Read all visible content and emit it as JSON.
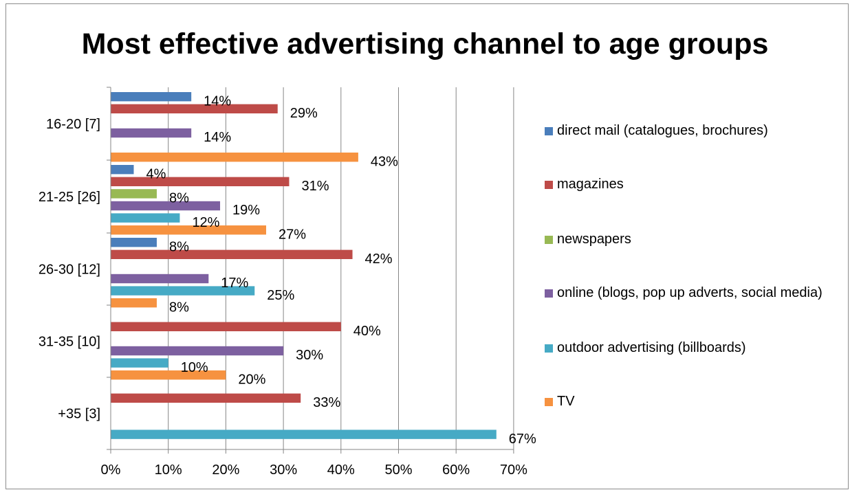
{
  "chart_data": {
    "type": "bar",
    "orientation": "horizontal",
    "title": "Most effective advertising channel to age groups",
    "xlabel": "",
    "ylabel": "",
    "xlim": [
      0,
      70
    ],
    "x_ticks": [
      "0%",
      "10%",
      "20%",
      "30%",
      "40%",
      "50%",
      "60%",
      "70%"
    ],
    "grid": "vertical major gridlines",
    "legend_position": "right",
    "categories": [
      "16-20 [7]",
      "21-25 [26]",
      "26-30 [12]",
      "31-35 [10]",
      "+35 [3]"
    ],
    "series": [
      {
        "name": "direct mail (catalogues, brochures)",
        "color": "#4a7ebb",
        "values": [
          14,
          4,
          8,
          null,
          null
        ]
      },
      {
        "name": "magazines",
        "color": "#be4b48",
        "values": [
          29,
          31,
          42,
          40,
          33
        ]
      },
      {
        "name": "newspapers",
        "color": "#98b954",
        "values": [
          null,
          8,
          null,
          null,
          null
        ]
      },
      {
        "name": "online (blogs, pop up adverts, social media)",
        "color": "#7d60a0",
        "values": [
          14,
          19,
          17,
          30,
          null
        ]
      },
      {
        "name": "outdoor advertising (billboards)",
        "color": "#46aac5",
        "values": [
          null,
          12,
          25,
          10,
          67
        ]
      },
      {
        "name": "TV",
        "color": "#f69240",
        "values": [
          43,
          27,
          8,
          20,
          null
        ]
      }
    ]
  }
}
